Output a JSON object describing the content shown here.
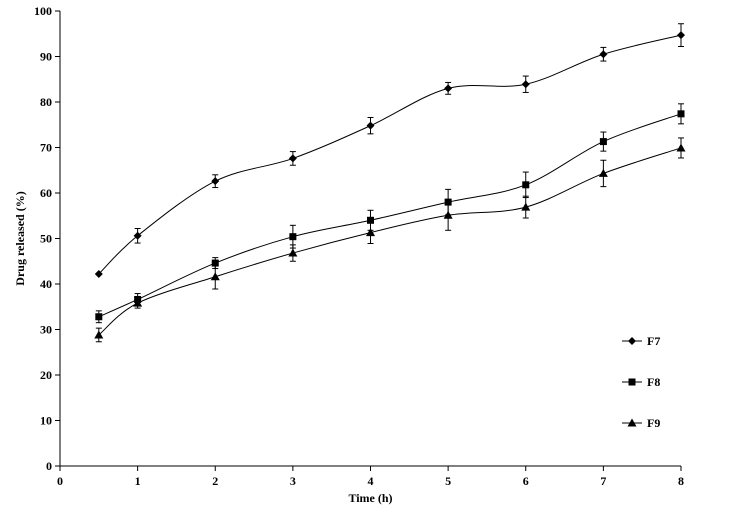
{
  "chart_data": {
    "type": "line",
    "xlabel": "Time (h)",
    "ylabel": "Drug released (%)",
    "xlim": [
      0,
      8
    ],
    "ylim": [
      0,
      100
    ],
    "x_ticks": [
      "0",
      "1",
      "2",
      "3",
      "4",
      "5",
      "6",
      "7",
      "8"
    ],
    "y_ticks": [
      "0",
      "10",
      "20",
      "30",
      "40",
      "50",
      "60",
      "70",
      "80",
      "90",
      "100"
    ],
    "grid": false,
    "legend_position": "right",
    "x": [
      0.5,
      1,
      2,
      3,
      4,
      5,
      6,
      7,
      8
    ],
    "series": [
      {
        "name": "F7",
        "marker": "diamond",
        "values": [
          42.2,
          50.6,
          62.6,
          67.6,
          74.8,
          83.0,
          83.9,
          90.5,
          94.7
        ],
        "errors": [
          0.0,
          1.6,
          1.4,
          1.5,
          1.8,
          1.3,
          1.8,
          1.5,
          2.5
        ]
      },
      {
        "name": "F8",
        "marker": "square",
        "values": [
          32.8,
          36.6,
          44.6,
          50.4,
          54.0,
          58.0,
          61.8,
          71.3,
          77.4
        ],
        "errors": [
          1.3,
          1.3,
          1.2,
          2.5,
          2.2,
          2.8,
          2.8,
          2.1,
          2.2
        ]
      },
      {
        "name": "F9",
        "marker": "triangle",
        "values": [
          28.8,
          35.8,
          41.6,
          46.8,
          51.3,
          55.1,
          56.9,
          64.3,
          69.9
        ],
        "errors": [
          1.5,
          1.1,
          2.7,
          1.8,
          2.4,
          3.3,
          2.4,
          2.9,
          2.2
        ]
      }
    ]
  }
}
